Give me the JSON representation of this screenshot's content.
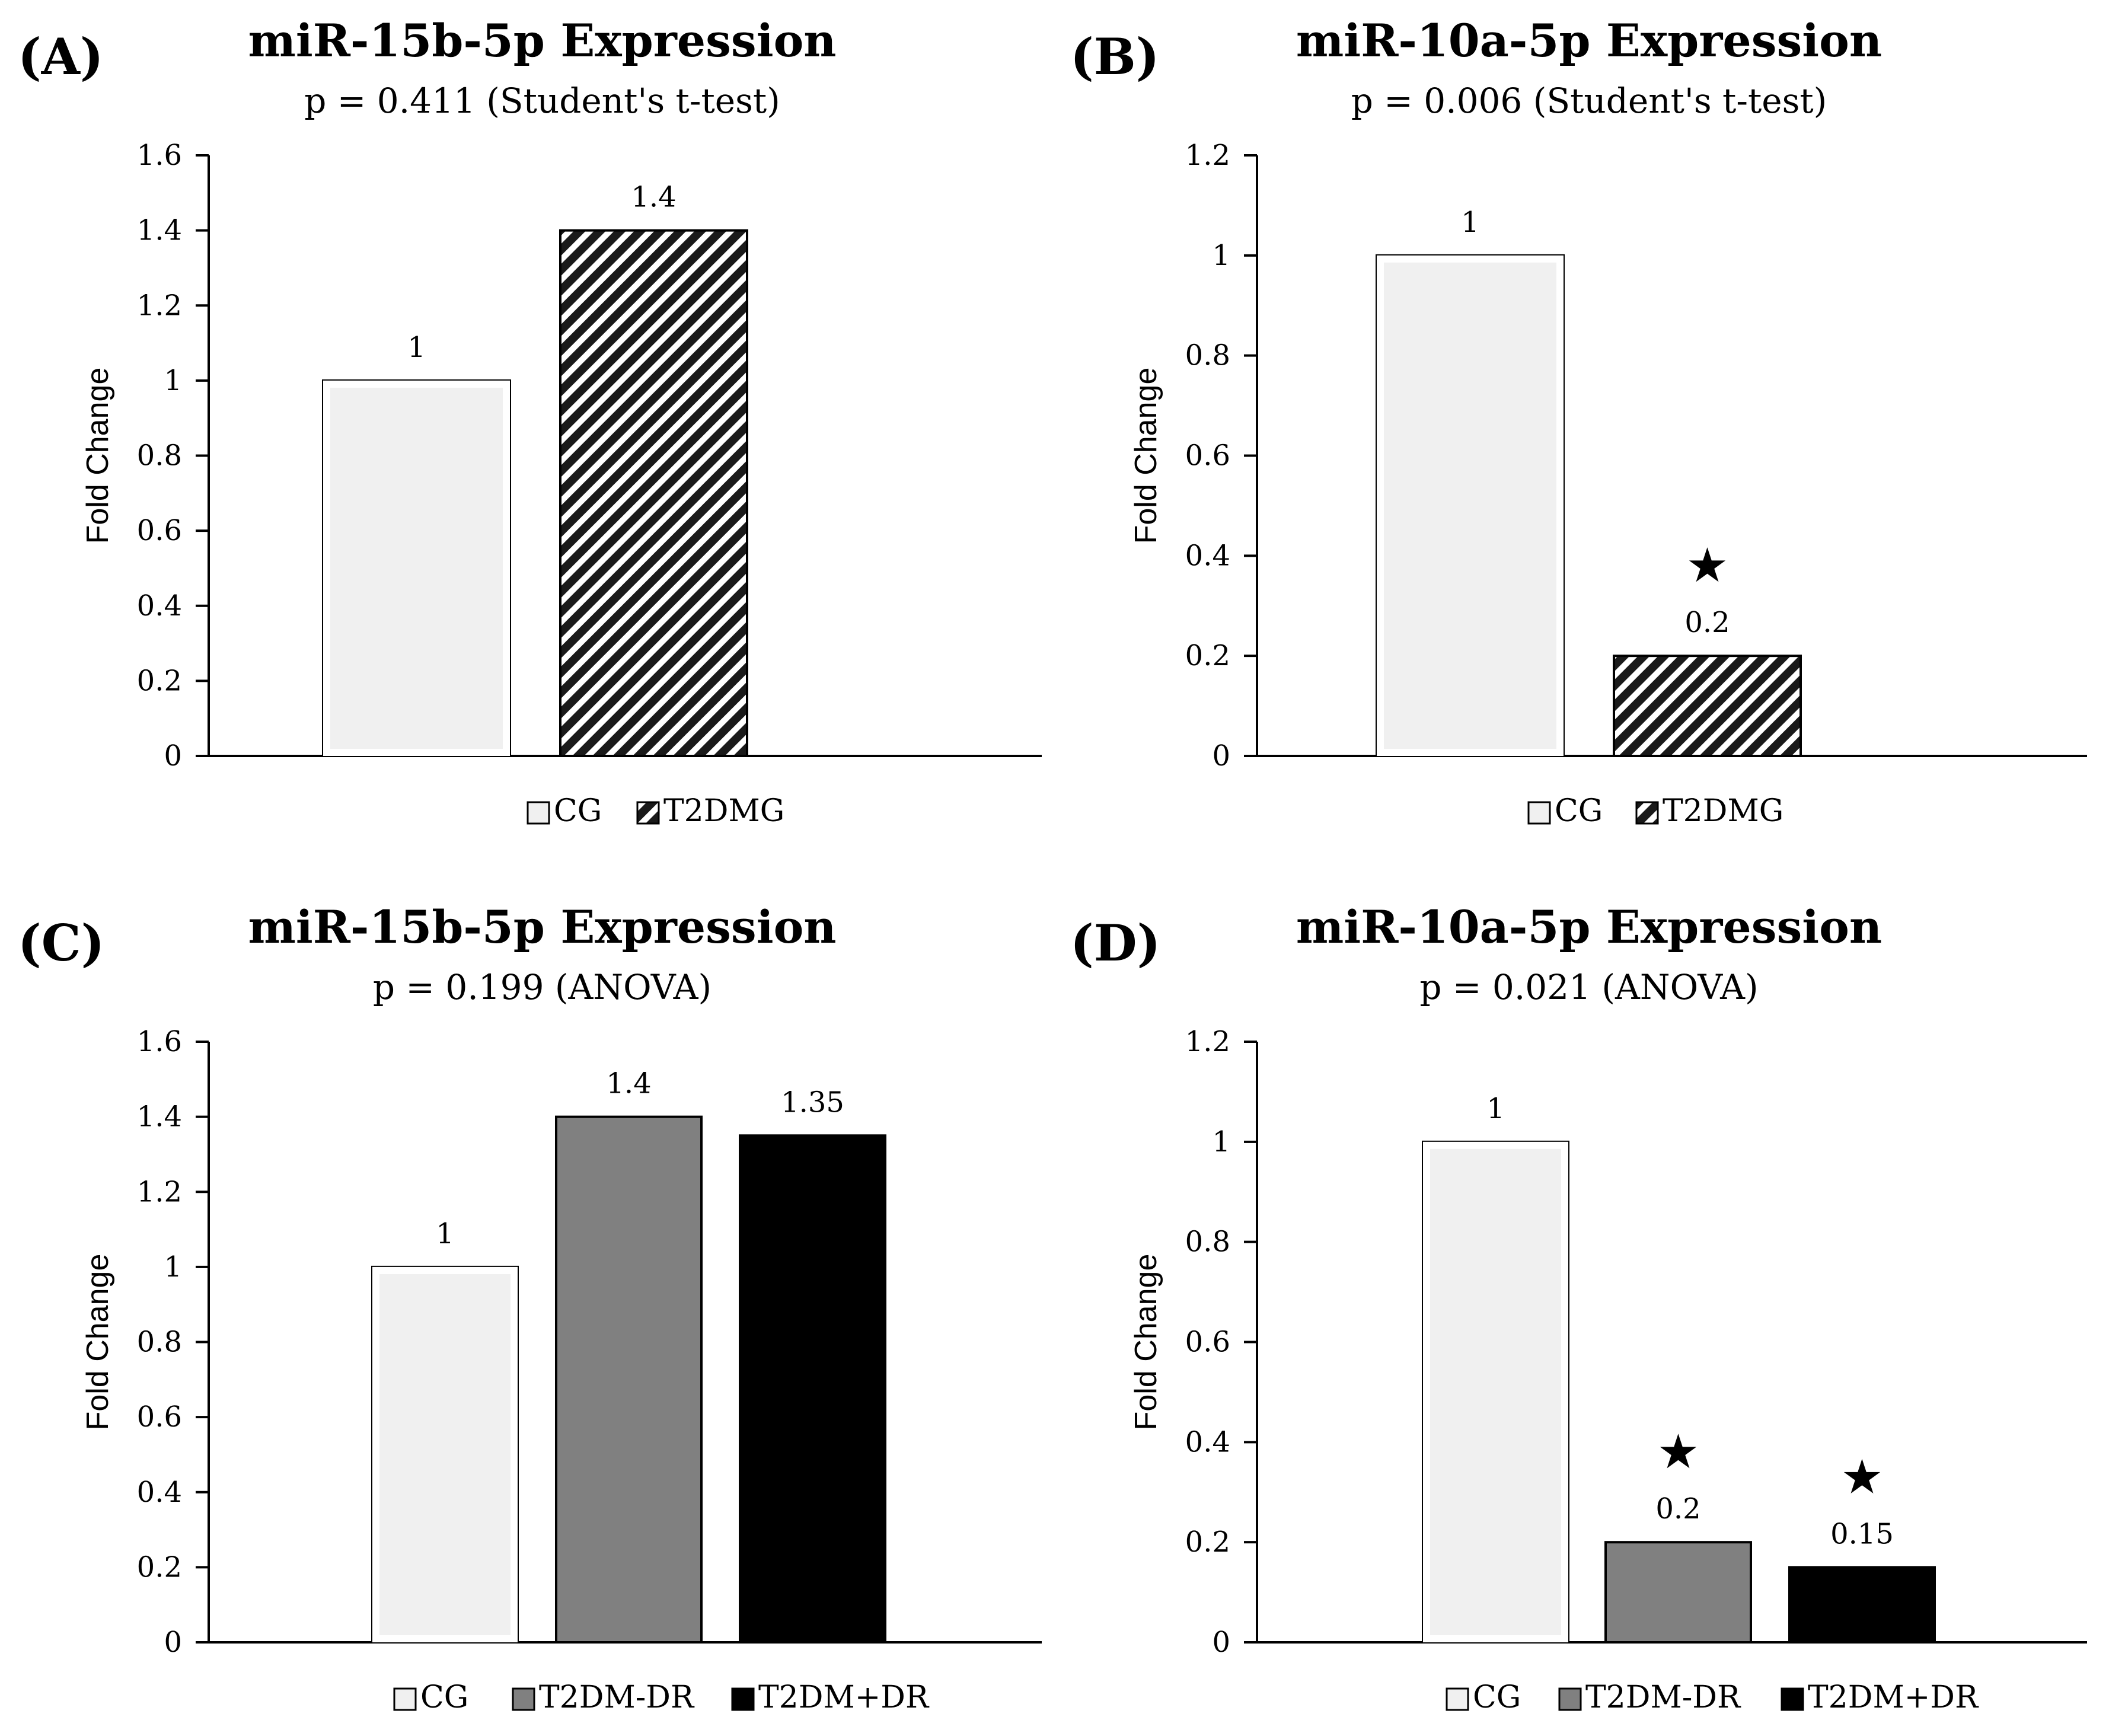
{
  "colors": {
    "CG": "#f0f0f0",
    "T2DMG": "hatch",
    "T2DM-DR": "#808080",
    "T2DM+DR": "#000000",
    "axis": "#000000"
  },
  "chart_data": [
    {
      "type": "bar",
      "panel": "(A)",
      "title": "miR-15b-5p Expression",
      "subtitle": "p = 0.411 (Student's t-test)",
      "ylabel": "Fold Change",
      "ylim": [
        0,
        1.6
      ],
      "yticks": [
        "0",
        "0.2",
        "0.4",
        "0.6",
        "0.8",
        "1",
        "1.2",
        "1.4",
        "1.6"
      ],
      "categories": [
        "CG",
        "T2DMG"
      ],
      "values": [
        1,
        1.4
      ],
      "value_labels": [
        "1",
        "1.4"
      ],
      "significant": [
        false,
        false
      ],
      "legend": [
        "CG",
        "T2DMG"
      ],
      "legend_position": "bottom"
    },
    {
      "type": "bar",
      "panel": "(B)",
      "title": "miR-10a-5p Expression",
      "subtitle": "p = 0.006 (Student's t-test)",
      "ylabel": "Fold Change",
      "ylim": [
        0,
        1.2
      ],
      "yticks": [
        "0",
        "0.2",
        "0.4",
        "0.6",
        "0.8",
        "1",
        "1.2"
      ],
      "categories": [
        "CG",
        "T2DMG"
      ],
      "values": [
        1,
        0.2
      ],
      "value_labels": [
        "1",
        "0.2"
      ],
      "significant": [
        false,
        true
      ],
      "legend": [
        "CG",
        "T2DMG"
      ],
      "legend_position": "bottom"
    },
    {
      "type": "bar",
      "panel": "(C)",
      "title": "miR-15b-5p Expression",
      "subtitle": "p = 0.199 (ANOVA)",
      "ylabel": "Fold Change",
      "ylim": [
        0,
        1.6
      ],
      "yticks": [
        "0",
        "0.2",
        "0.4",
        "0.6",
        "0.8",
        "1",
        "1.2",
        "1.4",
        "1.6"
      ],
      "categories": [
        "CG",
        "T2DM-DR",
        "T2DM+DR"
      ],
      "values": [
        1,
        1.4,
        1.35
      ],
      "value_labels": [
        "1",
        "1.4",
        "1.35"
      ],
      "significant": [
        false,
        false,
        false
      ],
      "legend": [
        "CG",
        "T2DM-DR",
        "T2DM+DR"
      ],
      "legend_position": "bottom"
    },
    {
      "type": "bar",
      "panel": "(D)",
      "title": "miR-10a-5p Expression",
      "subtitle": "p = 0.021 (ANOVA)",
      "ylabel": "Fold Change",
      "ylim": [
        0,
        1.2
      ],
      "yticks": [
        "0",
        "0.2",
        "0.4",
        "0.6",
        "0.8",
        "1",
        "1.2"
      ],
      "categories": [
        "CG",
        "T2DM-DR",
        "T2DM+DR"
      ],
      "values": [
        1,
        0.2,
        0.15
      ],
      "value_labels": [
        "1",
        "0.2",
        "0.15"
      ],
      "significant": [
        false,
        true,
        true
      ],
      "legend": [
        "CG",
        "T2DM-DR",
        "T2DM+DR"
      ],
      "legend_position": "bottom"
    }
  ]
}
